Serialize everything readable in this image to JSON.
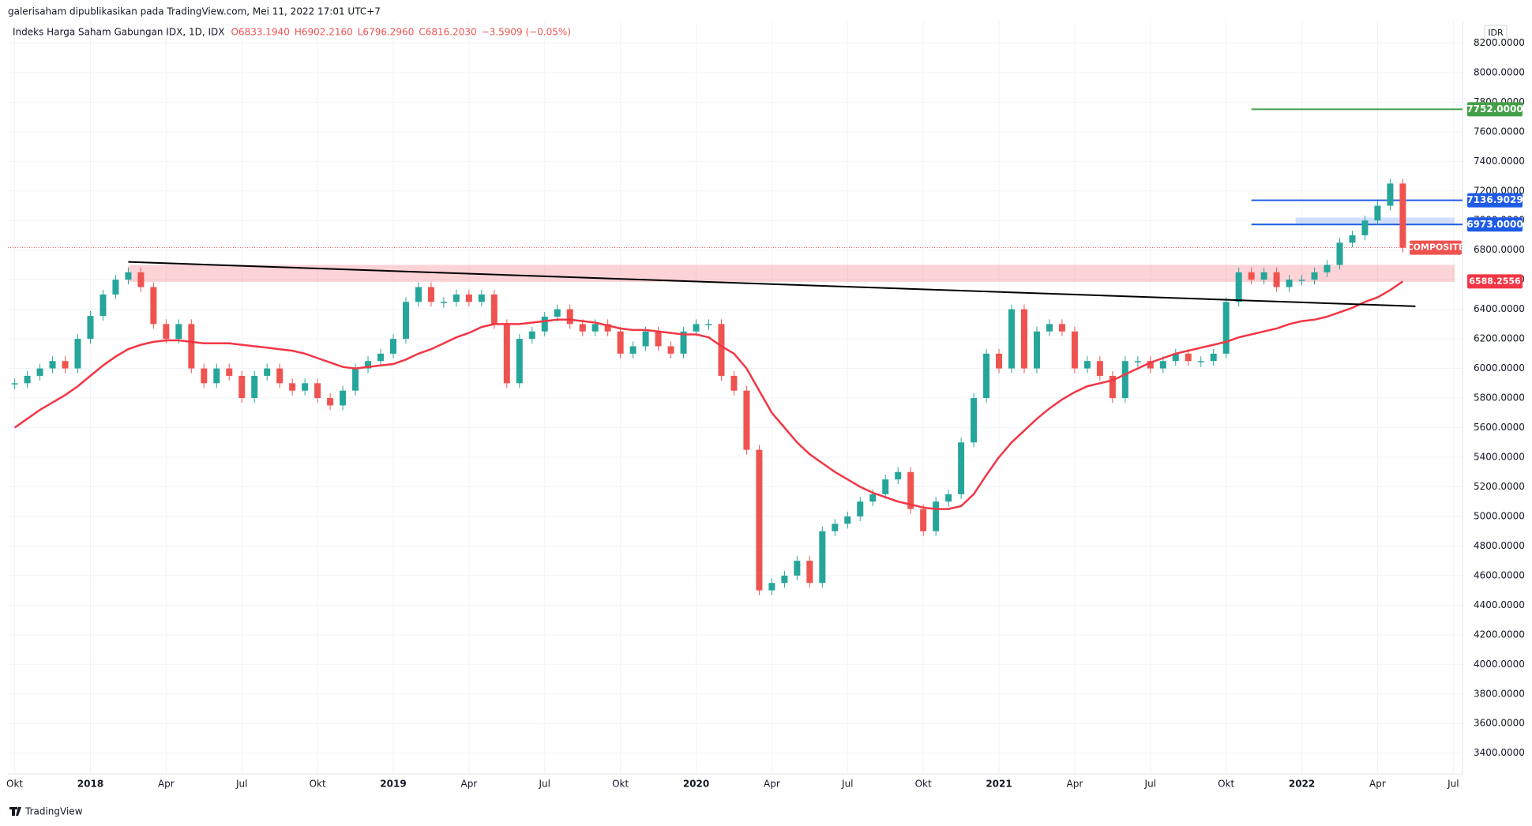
{
  "header": {
    "publisher": "galerisaham dipublikasikan pada TradingView.com, Mei 11, 2022 17:01 UTC+7",
    "symbol": "Indeks Harga Saham Gabungan IDX, 1D, IDX",
    "ohlc": [
      "O6833.1940",
      "H6902.2160",
      "L6796.2960",
      "C6816.2030",
      "−3.5909 (−0.05%)"
    ],
    "currency": "IDR",
    "brand": "TradingView"
  },
  "chart_data": {
    "type": "candlestick",
    "up_color": "#26a69a",
    "down_color": "#ef5350",
    "categories": [
      "Okt",
      null,
      null,
      null,
      null,
      null,
      "2018",
      null,
      null,
      null,
      null,
      null,
      "Apr",
      null,
      null,
      null,
      null,
      null,
      "Jul",
      null,
      null,
      null,
      null,
      null,
      "Okt",
      null,
      null,
      null,
      null,
      null,
      "2019",
      null,
      null,
      null,
      null,
      null,
      "Apr",
      null,
      null,
      null,
      null,
      null,
      "Jul",
      null,
      null,
      null,
      null,
      null,
      "Okt",
      null,
      null,
      null,
      null,
      null,
      "2020",
      null,
      null,
      null,
      null,
      null,
      "Apr",
      null,
      null,
      null,
      null,
      null,
      "Jul",
      null,
      null,
      null,
      null,
      null,
      "Okt",
      null,
      null,
      null,
      null,
      null,
      "2021",
      null,
      null,
      null,
      null,
      null,
      "Apr",
      null,
      null,
      null,
      null,
      null,
      "Jul",
      null,
      null,
      null,
      null,
      null,
      "Okt",
      null,
      null,
      null,
      null,
      null,
      "2022",
      null,
      null,
      null,
      null,
      null,
      "Apr",
      null,
      null,
      null,
      null,
      null,
      "Jul"
    ],
    "values": [
      5900,
      5950,
      6000,
      6050,
      6000,
      6200,
      6355,
      6500,
      6600,
      6650,
      6550,
      6300,
      6200,
      6300,
      6000,
      5900,
      6000,
      5950,
      5800,
      5950,
      6000,
      5900,
      5850,
      5900,
      5800,
      5750,
      5850,
      6000,
      6050,
      6100,
      6200,
      6450,
      6550,
      6450,
      6450,
      6500,
      6450,
      6500,
      6300,
      5900,
      6200,
      6250,
      6350,
      6400,
      6300,
      6250,
      6300,
      6250,
      6100,
      6150,
      6250,
      6150,
      6100,
      6250,
      6300,
      6300,
      5950,
      5850,
      5450,
      4500,
      4550,
      4600,
      4700,
      4550,
      4900,
      4950,
      5000,
      5100,
      5150,
      5250,
      5300,
      5050,
      4900,
      5100,
      5150,
      5500,
      5800,
      6100,
      6000,
      6400,
      6000,
      6250,
      6300,
      6250,
      6000,
      6050,
      5950,
      5800,
      6050,
      6050,
      6000,
      6050,
      6100,
      6050,
      6050,
      6100,
      6450,
      6650,
      6600,
      6650,
      6550,
      6600,
      6600,
      6650,
      6700,
      6850,
      6900,
      7000,
      7100,
      7250,
      6816.203,
      null,
      null,
      null,
      null
    ],
    "ma": {
      "color": "#f23645",
      "values": [
        5600,
        5660,
        5720,
        5770,
        5820,
        5880,
        5950,
        6020,
        6080,
        6130,
        6160,
        6180,
        6190,
        6190,
        6180,
        6170,
        6170,
        6170,
        6160,
        6150,
        6140,
        6130,
        6120,
        6100,
        6070,
        6040,
        6010,
        6000,
        6010,
        6020,
        6030,
        6060,
        6100,
        6130,
        6170,
        6210,
        6240,
        6280,
        6300,
        6300,
        6300,
        6310,
        6320,
        6330,
        6330,
        6320,
        6310,
        6290,
        6270,
        6260,
        6260,
        6250,
        6240,
        6230,
        6230,
        6210,
        6150,
        6100,
        6000,
        5850,
        5700,
        5600,
        5500,
        5420,
        5360,
        5300,
        5250,
        5200,
        5160,
        5130,
        5100,
        5080,
        5060,
        5050,
        5050,
        5070,
        5150,
        5280,
        5400,
        5500,
        5580,
        5660,
        5730,
        5790,
        5840,
        5880,
        5900,
        5920,
        5960,
        6000,
        6040,
        6070,
        6100,
        6120,
        6140,
        6160,
        6180,
        6210,
        6230,
        6250,
        6270,
        6300,
        6320,
        6330,
        6350,
        6380,
        6410,
        6450,
        6480,
        6530,
        6588.2556,
        null,
        null,
        null,
        null
      ]
    },
    "trendline": {
      "color": "#000000",
      "values": [
        6720,
        6420
      ]
    },
    "zones": [
      {
        "range": [
          6585,
          6700
        ],
        "color": "rgba(242,54,69,0.22)"
      },
      {
        "range": [
          6980,
          7020
        ],
        "color": "rgba(41,98,255,0.2)"
      }
    ],
    "levels": [
      {
        "value": 7752,
        "label": "7752.0000",
        "color": "#43a047"
      },
      {
        "value": 7136.9029,
        "label": "7136.9029",
        "color": "#1e5be6"
      },
      {
        "value": 6973,
        "label": "6973.0000",
        "color": "#1e5be6"
      }
    ],
    "price_labels": [
      {
        "value": 6816.203,
        "label": "COMPOSITE",
        "color": "#ef5350"
      },
      {
        "value": 6588.2556,
        "label": "6588.2556",
        "color": "#f23645"
      }
    ],
    "ylim": [
      3400,
      8200
    ],
    "yticks": [
      {
        "value": 8200,
        "label": "8200.0000"
      },
      {
        "value": 8000,
        "label": "8000.0000"
      },
      {
        "value": 7800,
        "label": "7800.0000"
      },
      {
        "value": 7600,
        "label": "7600.0000"
      },
      {
        "value": 7400,
        "label": "7400.0000"
      },
      {
        "value": 7200,
        "label": "7200.0000"
      },
      {
        "value": 7000,
        "label": "7000.0000"
      },
      {
        "value": 6800,
        "label": "6800.0000"
      },
      {
        "value": 6600,
        "label": "6600.0000"
      },
      {
        "value": 6400,
        "label": "6400.0000"
      },
      {
        "value": 6200,
        "label": "6200.0000"
      },
      {
        "value": 6000,
        "label": "6000.0000"
      },
      {
        "value": 5800,
        "label": "5800.0000"
      },
      {
        "value": 5600,
        "label": "5600.0000"
      },
      {
        "value": 5400,
        "label": "5400.0000"
      },
      {
        "value": 5200,
        "label": "5200.0000"
      },
      {
        "value": 5000,
        "label": "5000.0000"
      },
      {
        "value": 4800,
        "label": "4800.0000"
      },
      {
        "value": 4600,
        "label": "4600.0000"
      },
      {
        "value": 4400,
        "label": "4400.0000"
      },
      {
        "value": 4200,
        "label": "4200.0000"
      },
      {
        "value": 4000,
        "label": "4000.0000"
      },
      {
        "value": 3800,
        "label": "3800.0000"
      },
      {
        "value": 3600,
        "label": "3600.0000"
      },
      {
        "value": 3400,
        "label": "3400.0000"
      }
    ],
    "grid": true
  }
}
